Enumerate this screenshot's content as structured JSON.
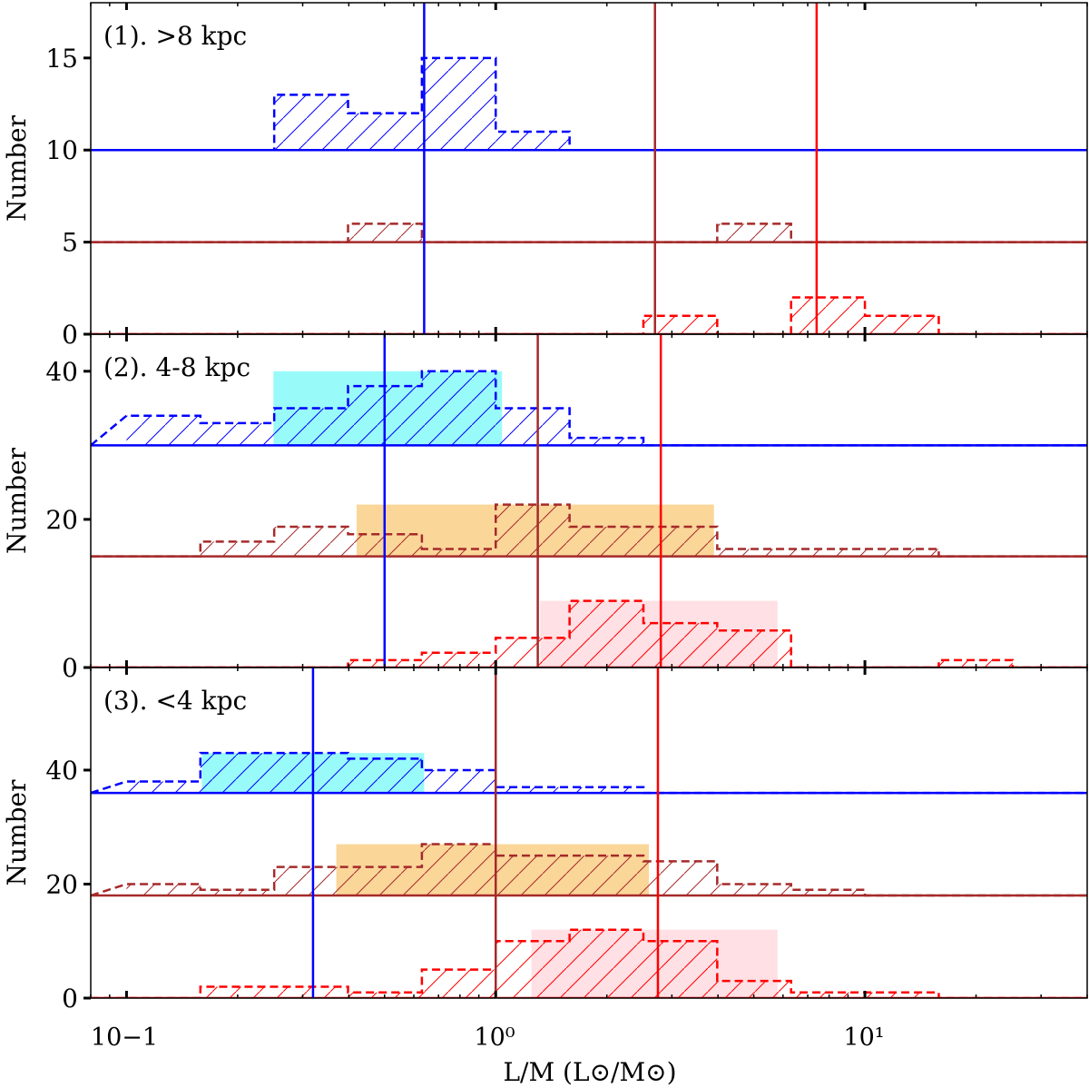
{
  "chart_data": [
    {
      "type": "histogram",
      "panel_label": "(1). >8 kpc",
      "ylabel": "Number",
      "ylim": [
        0,
        18
      ],
      "yticks": [
        0,
        5,
        10,
        15
      ],
      "bin_edges": [
        0.1,
        0.1585,
        0.2512,
        0.3981,
        0.631,
        1.0,
        1.585,
        2.512,
        3.981,
        6.31,
        10.0,
        15.85,
        25.12
      ],
      "series": [
        {
          "name": "blue",
          "color": "#0000ff",
          "offset": 10,
          "counts": [
            0,
            0,
            3,
            2,
            5,
            1,
            0,
            0,
            0,
            0,
            0,
            0
          ],
          "median": 0.64,
          "spread": null,
          "spread_color": null
        },
        {
          "name": "brown",
          "color": "#a52a2a",
          "offset": 5,
          "counts": [
            0,
            0,
            0,
            1,
            0,
            0,
            0,
            0,
            1,
            0,
            0,
            0
          ],
          "median": 2.7,
          "spread": null,
          "spread_color": null
        },
        {
          "name": "red",
          "color": "#ff0000",
          "offset": 0,
          "counts": [
            0,
            0,
            0,
            0,
            0,
            0,
            0,
            1,
            0,
            2,
            1,
            0
          ],
          "median": 7.4,
          "spread": null,
          "spread_color": null
        }
      ]
    },
    {
      "type": "histogram",
      "panel_label": "(2). 4-8 kpc",
      "ylabel": "Number",
      "ylim": [
        0,
        45
      ],
      "yticks": [
        0,
        20,
        40
      ],
      "bin_edges": [
        0.1,
        0.1585,
        0.2512,
        0.3981,
        0.631,
        1.0,
        1.585,
        2.512,
        3.981,
        6.31,
        10.0,
        15.85,
        25.12
      ],
      "series": [
        {
          "name": "blue",
          "color": "#0000ff",
          "offset": 30,
          "counts": [
            4,
            3,
            5,
            8,
            10,
            5,
            1,
            0,
            0,
            0,
            0,
            0
          ],
          "median": 0.5,
          "spread": [
            0.25,
            1.04
          ],
          "spread_color": "#99fafa"
        },
        {
          "name": "brown",
          "color": "#a52a2a",
          "offset": 15,
          "counts": [
            0,
            2,
            4,
            3,
            1,
            7,
            4,
            4,
            1,
            1,
            1,
            0
          ],
          "median": 1.3,
          "spread": [
            0.42,
            3.9
          ],
          "spread_color": "#fbd699"
        },
        {
          "name": "red",
          "color": "#ff0000",
          "offset": 0,
          "counts": [
            0,
            0,
            0,
            1,
            2,
            4,
            9,
            6,
            5,
            0,
            0,
            1
          ],
          "median": 2.8,
          "spread": [
            1.32,
            5.8
          ],
          "spread_color": "#ffe0e5"
        }
      ]
    },
    {
      "type": "histogram",
      "panel_label": "(3). <4 kpc",
      "ylabel": "Number",
      "ylim": [
        0,
        58
      ],
      "yticks": [
        0,
        20,
        40
      ],
      "bin_edges": [
        0.1,
        0.1585,
        0.2512,
        0.3981,
        0.631,
        1.0,
        1.585,
        2.512,
        3.981,
        6.31,
        10.0,
        15.85,
        25.12
      ],
      "series": [
        {
          "name": "blue",
          "color": "#0000ff",
          "offset": 36,
          "counts": [
            2,
            7,
            7,
            6,
            4,
            1,
            1,
            0,
            0,
            0,
            0,
            0
          ],
          "median": 0.32,
          "spread": [
            0.16,
            0.64
          ],
          "spread_color": "#99fafa"
        },
        {
          "name": "brown",
          "color": "#a52a2a",
          "offset": 18,
          "counts": [
            2,
            1,
            5,
            5,
            9,
            7,
            7,
            6,
            2,
            1,
            0,
            0
          ],
          "median": 1.0,
          "spread": [
            0.37,
            2.6
          ],
          "spread_color": "#fbd699"
        },
        {
          "name": "red",
          "color": "#ff0000",
          "offset": 0,
          "counts": [
            0,
            2,
            2,
            1,
            5,
            10,
            12,
            10,
            3,
            1,
            1,
            0
          ],
          "median": 2.75,
          "spread": [
            1.25,
            5.8
          ],
          "spread_color": "#ffe0e5"
        }
      ]
    }
  ],
  "x_axis": {
    "scale": "log",
    "xlim": [
      0.08,
      40
    ],
    "ticks": [
      {
        "value": 0.1,
        "label": "10−1"
      },
      {
        "value": 1,
        "label": "10⁰"
      },
      {
        "value": 10,
        "label": "10¹"
      }
    ],
    "xlabel": "L/M (L⊙/M⊙)"
  }
}
